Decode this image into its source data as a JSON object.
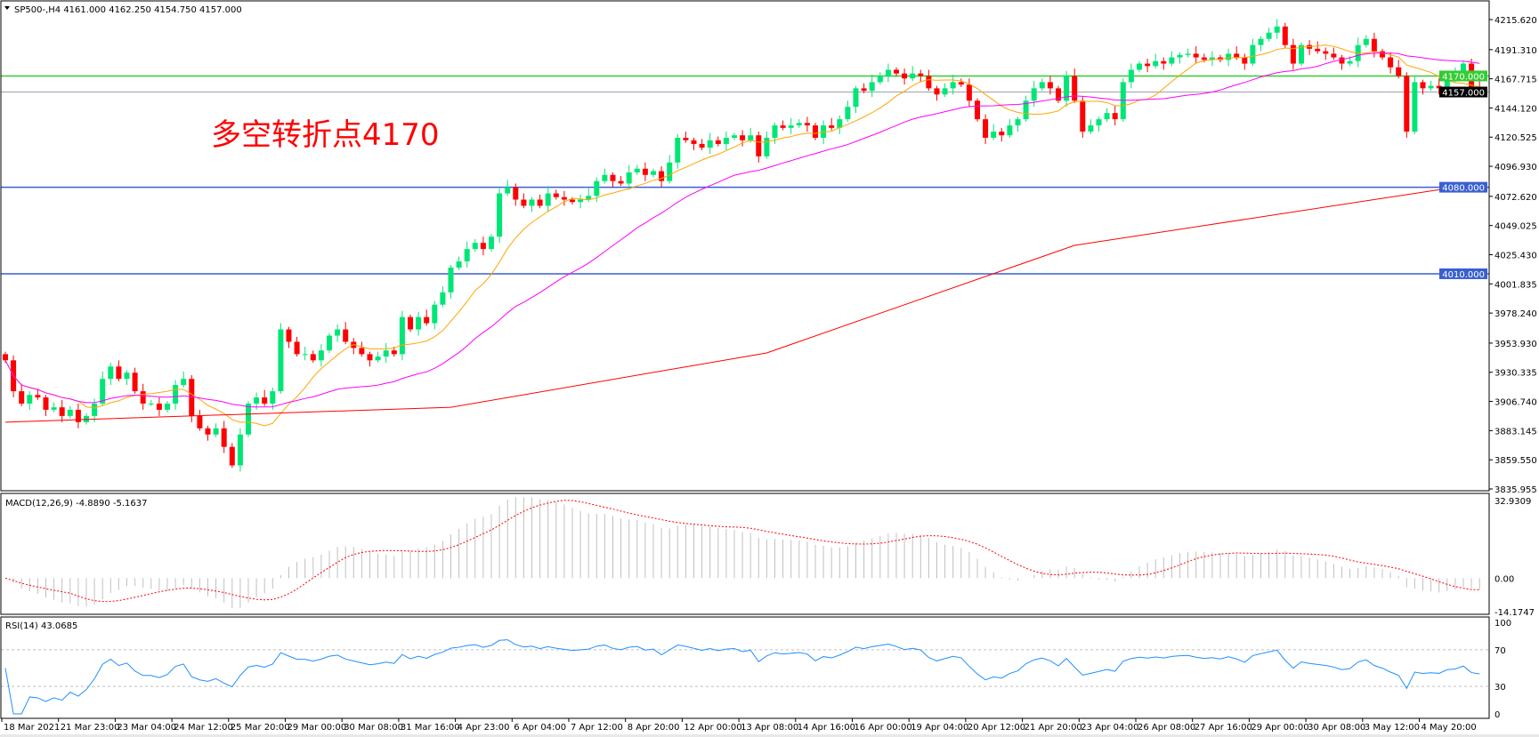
{
  "header": {
    "symbol_info": "SP500-,H4  4161.000 4162.250 4154.750 4157.000"
  },
  "annotation": {
    "text": "多空转折点4170",
    "color": "#ff0000"
  },
  "colors": {
    "bull": "#00e676",
    "bear": "#ff0000",
    "ma_fast": "#ffa500",
    "ma_mid": "#ff00ff",
    "ma_slow": "#ff0000",
    "rsi": "#1e90ff",
    "macd_hist": "#c0c0c0",
    "macd_signal": "#ff0000"
  },
  "chart_data": {
    "type": "candlestick",
    "title": "SP500-,H4",
    "ylim": [
      3835.955,
      4215.62
    ],
    "y_ticks": [
      "4215.620",
      "4191.310",
      "4167.715",
      "4144.120",
      "4120.525",
      "4096.930",
      "4072.620",
      "4049.025",
      "4025.430",
      "4001.835",
      "3978.240",
      "3953.930",
      "3930.335",
      "3906.740",
      "3883.145",
      "3859.550",
      "3835.955"
    ],
    "x_ticks": [
      "18 Mar 2021",
      "21 Mar 23:00",
      "23 Mar 04:00",
      "24 Mar 12:00",
      "25 Mar 20:00",
      "29 Mar 00:00",
      "30 Mar 08:00",
      "31 Mar 16:00",
      "4 Apr 23:00",
      "6 Apr 04:00",
      "7 Apr 12:00",
      "8 Apr 20:00",
      "12 Apr 00:00",
      "13 Apr 08:00",
      "14 Apr 16:00",
      "16 Apr 00:00",
      "19 Apr 04:00",
      "20 Apr 12:00",
      "21 Apr 20:00",
      "23 Apr 04:00",
      "26 Apr 08:00",
      "27 Apr 16:00",
      "29 Apr 00:00",
      "30 Apr 08:00",
      "3 May 12:00",
      "4 May 20:00"
    ],
    "closes": [
      3940,
      3915,
      3905,
      3912,
      3910,
      3900,
      3902,
      3895,
      3900,
      3890,
      3895,
      3905,
      3925,
      3935,
      3925,
      3930,
      3915,
      3905,
      3905,
      3900,
      3905,
      3920,
      3925,
      3895,
      3885,
      3880,
      3885,
      3870,
      3855,
      3880,
      3905,
      3910,
      3905,
      3915,
      3965,
      3955,
      3945,
      3945,
      3940,
      3948,
      3960,
      3965,
      3955,
      3950,
      3945,
      3940,
      3943,
      3948,
      3945,
      3975,
      3965,
      3975,
      3970,
      3985,
      3995,
      4015,
      4020,
      4030,
      4035,
      4030,
      4040,
      4075,
      4080,
      4070,
      4065,
      4070,
      4065,
      4075,
      4072,
      4070,
      4068,
      4070,
      4073,
      4085,
      4090,
      4085,
      4083,
      4092,
      4095,
      4090,
      4093,
      4085,
      4100,
      4120,
      4118,
      4115,
      4112,
      4118,
      4115,
      4120,
      4122,
      4118,
      4122,
      4105,
      4120,
      4130,
      4128,
      4130,
      4132,
      4130,
      4120,
      4130,
      4128,
      4135,
      4145,
      4160,
      4158,
      4165,
      4170,
      4175,
      4172,
      4168,
      4172,
      4170,
      4160,
      4155,
      4160,
      4165,
      4163,
      4150,
      4135,
      4120,
      4125,
      4122,
      4130,
      4135,
      4150,
      4160,
      4165,
      4160,
      4150,
      4170,
      4150,
      4125,
      4130,
      4135,
      4140,
      4135,
      4165,
      4175,
      4180,
      4178,
      4182,
      4180,
      4185,
      4187,
      4188,
      4185,
      4183,
      4185,
      4183,
      4188,
      4185,
      4180,
      4195,
      4200,
      4205,
      4210,
      4195,
      4180,
      4195,
      4192,
      4190,
      4188,
      4185,
      4180,
      4182,
      4195,
      4200,
      4190,
      4185,
      4177,
      4170,
      4125,
      4165,
      4160,
      4162,
      4160,
      4170,
      4172,
      4180,
      4161,
      4157
    ],
    "ma_slow_points": [
      [
        0,
        3890
      ],
      [
        55,
        3902
      ],
      [
        94,
        3946
      ],
      [
        132,
        4033
      ],
      [
        180,
        4081
      ]
    ],
    "hlines": [
      {
        "price": 4170.0,
        "label": "4170.000",
        "color": "#33cc33"
      },
      {
        "price": 4157.0,
        "label": "4157.000",
        "color": "#a0a0b0",
        "label_bg": "#000000"
      },
      {
        "price": 4080.0,
        "label": "4080.000",
        "color": "#3a5fd0"
      },
      {
        "price": 4010.0,
        "label": "4010.000",
        "color": "#3a5fd0"
      }
    ],
    "macd": {
      "label": "MACD(12,26,9) -4.8890 -5.1637",
      "ylim": [
        -14.1747,
        32.9309
      ],
      "y_ticks": [
        "32.9309",
        "0.00",
        "-14.1747"
      ]
    },
    "rsi": {
      "label": "RSI(14) 43.0685",
      "ylim": [
        0,
        100
      ],
      "levels": [
        30,
        70
      ],
      "y_ticks": [
        "100",
        "70",
        "30",
        "0"
      ]
    }
  }
}
